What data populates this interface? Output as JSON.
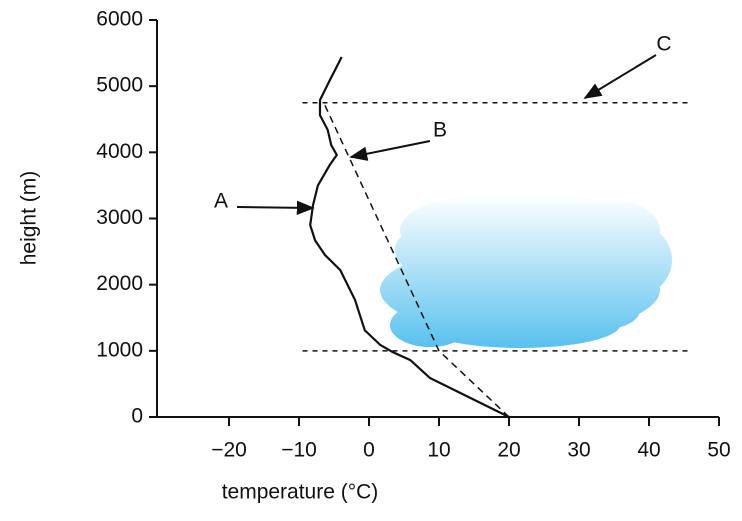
{
  "chart_data": {
    "type": "line",
    "xlabel": "temperature (°C)",
    "ylabel": "height (m)",
    "xlim": [
      -30,
      50
    ],
    "ylim": [
      0,
      6000
    ],
    "xticks": [
      {
        "value": -20,
        "label": "−20"
      },
      {
        "value": -10,
        "label": "−10"
      },
      0,
      10,
      20,
      30,
      40,
      50
    ],
    "yticks": [
      0,
      1000,
      2000,
      3000,
      4000,
      5000,
      6000
    ],
    "series": [
      {
        "color": "#111111",
        "dash": false,
        "x": [
          20,
          8.7,
          5.9,
          3.4,
          1.6,
          -0.6,
          -2,
          -4.1,
          -6.3,
          -7.7,
          -8.4,
          -8,
          -7.3,
          -5.6,
          -4.6,
          -5.4,
          -5.9,
          -7,
          -7,
          -5.6,
          -3.9
        ],
        "values": [
          0,
          590,
          860,
          980,
          1090,
          1310,
          1770,
          2220,
          2450,
          2670,
          2900,
          3200,
          3500,
          3810,
          3960,
          4110,
          4340,
          4560,
          4790,
          5090,
          5440
        ]
      },
      {
        "color": "#111111",
        "dash": true,
        "x": [
          20,
          10,
          -6.6
        ],
        "values": [
          0,
          1000,
          4780
        ]
      }
    ],
    "reference_lines": [
      {
        "y": 1000,
        "x_from": -9.5,
        "x_to": 46
      },
      {
        "y": 4750,
        "x_from": -9.5,
        "x_to": 46
      }
    ],
    "annotations": [
      "A",
      "B",
      "C"
    ]
  }
}
